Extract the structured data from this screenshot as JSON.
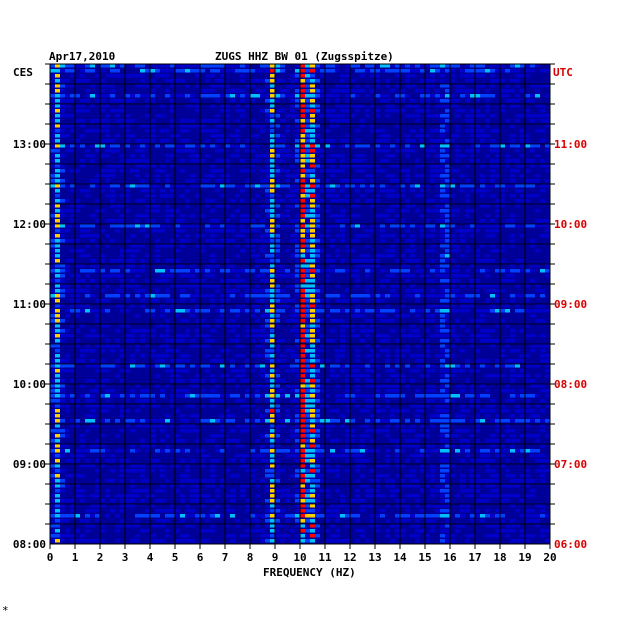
{
  "chart_data": {
    "type": "heatmap",
    "date": "Apr17,2010",
    "title": "ZUGS HHZ BW 01 (Zugsspitze)",
    "xlabel": "FREQUENCY (HZ)",
    "xlim": [
      0,
      20
    ],
    "x_ticks": [
      "0",
      "1",
      "2",
      "3",
      "4",
      "5",
      "6",
      "7",
      "8",
      "9",
      "10",
      "11",
      "12",
      "13",
      "14",
      "15",
      "16",
      "17",
      "18",
      "19",
      "20"
    ],
    "left_axis_label": "CES",
    "right_axis_label": "UTC",
    "left_time_ticks": [
      "13:00",
      "12:00",
      "11:00",
      "10:00",
      "09:00",
      "08:00"
    ],
    "right_time_ticks": [
      "11:00",
      "10:00",
      "09:00",
      "08:00",
      "07:00",
      "06:00"
    ],
    "time_range_local": [
      "08:00",
      "14:00"
    ],
    "time_range_utc": [
      "06:00",
      "12:00"
    ],
    "grid": true,
    "colors": {
      "background": "#000098",
      "low": "#0000c8",
      "mid": "#0040ff",
      "high": "#00c0ff",
      "peak": "#ff0000",
      "utc_label": "#d80000"
    },
    "spectral_lines_hz": [
      {
        "freq": 0.3,
        "relative_level": 0.55
      },
      {
        "freq": 8.9,
        "relative_level": 0.6
      },
      {
        "freq": 10.1,
        "relative_level": 0.95
      },
      {
        "freq": 10.5,
        "relative_level": 0.7
      },
      {
        "freq": 15.8,
        "relative_level": 0.35
      }
    ]
  },
  "footer_mark": "*"
}
